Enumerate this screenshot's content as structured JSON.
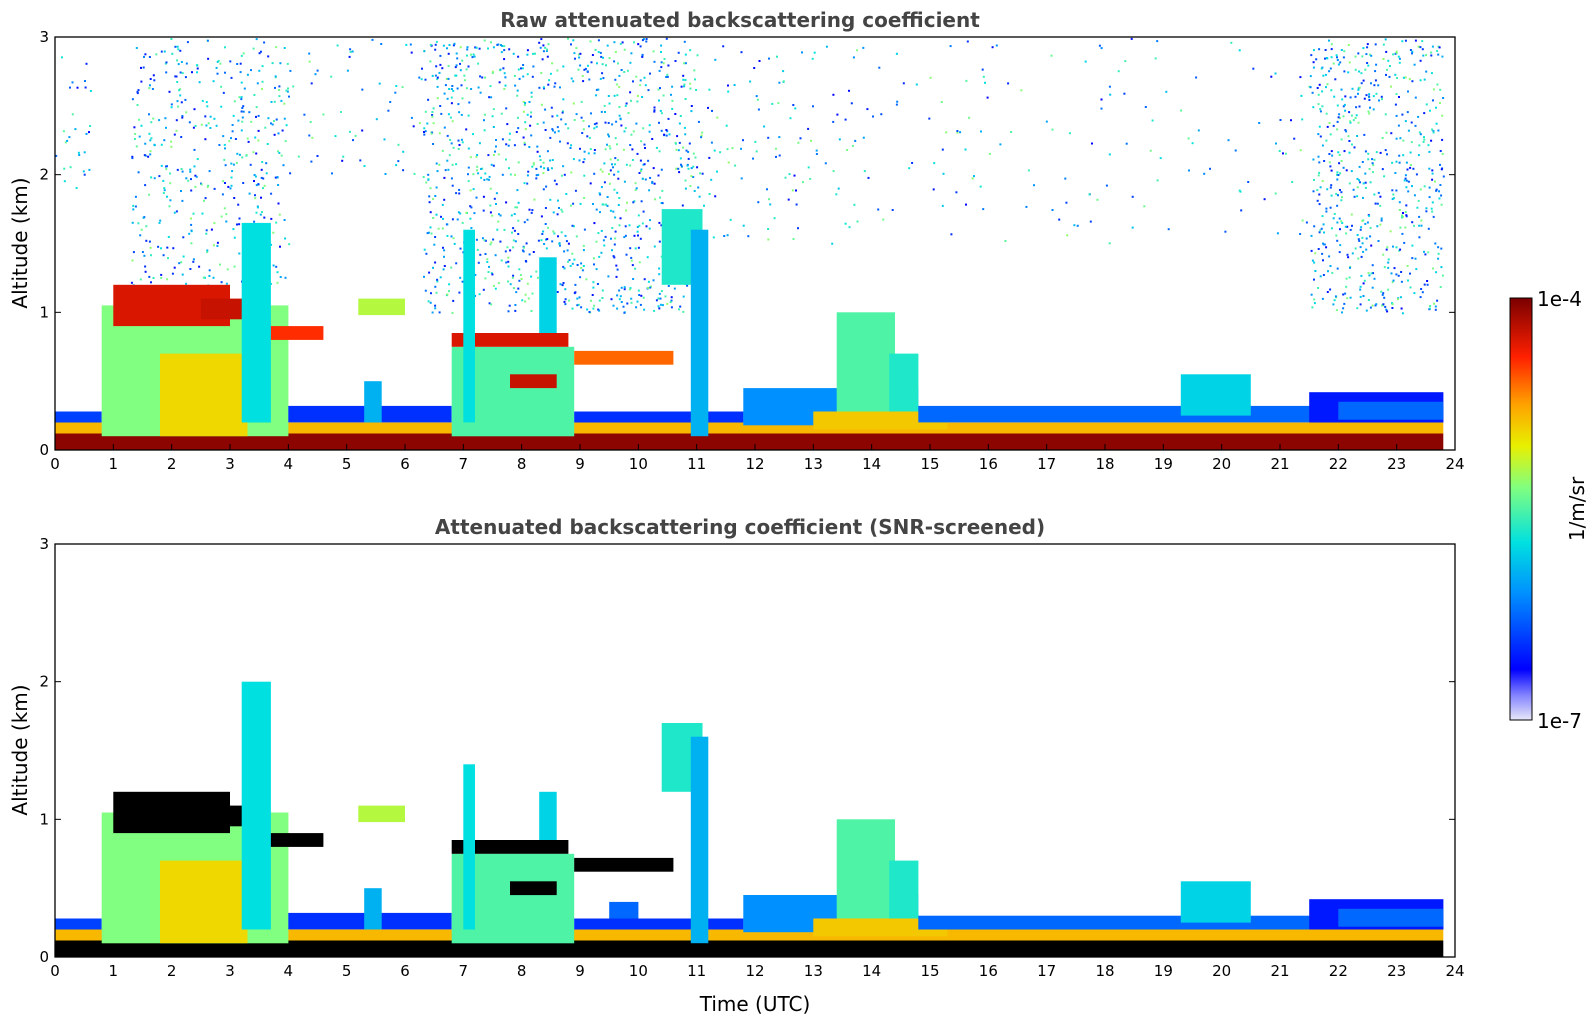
{
  "chart_data": [
    {
      "type": "heatmap",
      "title": "Raw attenuated backscattering coefficient",
      "xlabel": "",
      "ylabel": "Altitude (km)",
      "xlim": [
        0,
        24
      ],
      "ylim": [
        0,
        3
      ],
      "x_ticks": [
        "0",
        "1",
        "2",
        "3",
        "4",
        "5",
        "6",
        "7",
        "8",
        "9",
        "10",
        "11",
        "12",
        "13",
        "14",
        "15",
        "16",
        "17",
        "18",
        "19",
        "20",
        "21",
        "22",
        "23",
        "24"
      ],
      "y_ticks": [
        "0",
        "1",
        "2",
        "3"
      ],
      "masked_black": false,
      "noise": [
        {
          "t0": 0.0,
          "t1": 0.6,
          "alt0": 1.8,
          "alt1": 3.0,
          "density": 0.15
        },
        {
          "t0": 1.3,
          "t1": 4.0,
          "alt0": 1.2,
          "alt1": 3.0,
          "density": 0.35
        },
        {
          "t0": 4.0,
          "t1": 6.8,
          "alt0": 2.0,
          "alt1": 3.0,
          "density": 0.1
        },
        {
          "t0": 6.3,
          "t1": 11.0,
          "alt0": 1.0,
          "alt1": 3.0,
          "density": 0.45
        },
        {
          "t0": 11.0,
          "t1": 13.0,
          "alt0": 1.5,
          "alt1": 3.0,
          "density": 0.12
        },
        {
          "t0": 13.0,
          "t1": 21.5,
          "alt0": 1.5,
          "alt1": 3.0,
          "density": 0.05
        },
        {
          "t0": 21.5,
          "t1": 23.8,
          "alt0": 1.0,
          "alt1": 3.0,
          "density": 0.5
        }
      ],
      "features": [
        {
          "t0": 0.0,
          "t1": 23.8,
          "alt0": 0.0,
          "alt1": 0.12,
          "level": 0.98
        },
        {
          "t0": 0.0,
          "t1": 23.8,
          "alt0": 0.12,
          "alt1": 0.2,
          "level": 0.72
        },
        {
          "t0": 0.0,
          "t1": 0.8,
          "alt0": 0.2,
          "alt1": 0.28,
          "level": 0.2
        },
        {
          "t0": 0.8,
          "t1": 4.0,
          "alt0": 0.1,
          "alt1": 1.05,
          "level": 0.55
        },
        {
          "t0": 1.8,
          "t1": 3.3,
          "alt0": 0.1,
          "alt1": 0.7,
          "level": 0.68
        },
        {
          "t0": 1.0,
          "t1": 3.0,
          "alt0": 0.9,
          "alt1": 1.2,
          "level": 0.9
        },
        {
          "t0": 2.5,
          "t1": 3.6,
          "alt0": 0.95,
          "alt1": 1.1,
          "level": 0.92
        },
        {
          "t0": 3.5,
          "t1": 4.6,
          "alt0": 0.8,
          "alt1": 0.9,
          "level": 0.85
        },
        {
          "t0": 3.2,
          "t1": 3.7,
          "alt0": 0.2,
          "alt1": 1.65,
          "level": 0.42
        },
        {
          "t0": 4.0,
          "t1": 6.8,
          "alt0": 0.2,
          "alt1": 0.32,
          "level": 0.18
        },
        {
          "t0": 5.3,
          "t1": 5.6,
          "alt0": 0.2,
          "alt1": 0.5,
          "level": 0.35
        },
        {
          "t0": 5.2,
          "t1": 6.0,
          "alt0": 0.98,
          "alt1": 1.1,
          "level": 0.6
        },
        {
          "t0": 6.8,
          "t1": 8.9,
          "alt0": 0.1,
          "alt1": 0.75,
          "level": 0.5
        },
        {
          "t0": 6.8,
          "t1": 8.8,
          "alt0": 0.75,
          "alt1": 0.85,
          "level": 0.9
        },
        {
          "t0": 7.8,
          "t1": 8.6,
          "alt0": 0.45,
          "alt1": 0.55,
          "level": 0.92
        },
        {
          "t0": 7.0,
          "t1": 7.2,
          "alt0": 0.2,
          "alt1": 1.6,
          "level": 0.42
        },
        {
          "t0": 8.3,
          "t1": 8.6,
          "alt0": 0.85,
          "alt1": 1.4,
          "level": 0.4
        },
        {
          "t0": 8.9,
          "t1": 10.6,
          "alt0": 0.62,
          "alt1": 0.72,
          "level": 0.8
        },
        {
          "t0": 8.9,
          "t1": 11.8,
          "alt0": 0.2,
          "alt1": 0.28,
          "level": 0.18
        },
        {
          "t0": 10.4,
          "t1": 11.1,
          "alt0": 1.2,
          "alt1": 1.75,
          "level": 0.45
        },
        {
          "t0": 10.9,
          "t1": 11.2,
          "alt0": 0.1,
          "alt1": 1.6,
          "level": 0.35
        },
        {
          "t0": 11.8,
          "t1": 14.8,
          "alt0": 0.18,
          "alt1": 0.45,
          "level": 0.3
        },
        {
          "t0": 13.4,
          "t1": 14.4,
          "alt0": 0.2,
          "alt1": 1.0,
          "level": 0.5
        },
        {
          "t0": 14.3,
          "t1": 14.8,
          "alt0": 0.2,
          "alt1": 0.7,
          "level": 0.45
        },
        {
          "t0": 13.0,
          "t1": 15.3,
          "alt0": 0.15,
          "alt1": 0.28,
          "level": 0.7
        },
        {
          "t0": 14.8,
          "t1": 23.8,
          "alt0": 0.2,
          "alt1": 0.32,
          "level": 0.25
        },
        {
          "t0": 19.3,
          "t1": 20.5,
          "alt0": 0.25,
          "alt1": 0.55,
          "level": 0.4
        },
        {
          "t0": 21.5,
          "t1": 23.8,
          "alt0": 0.2,
          "alt1": 0.42,
          "level": 0.15
        },
        {
          "t0": 22.0,
          "t1": 23.8,
          "alt0": 0.22,
          "alt1": 0.35,
          "level": 0.25
        }
      ]
    },
    {
      "type": "heatmap",
      "title": "Attenuated backscattering coefficient (SNR-screened)",
      "xlabel": "Time (UTC)",
      "ylabel": "Altitude (km)",
      "xlim": [
        0,
        24
      ],
      "ylim": [
        0,
        3
      ],
      "x_ticks": [
        "0",
        "1",
        "2",
        "3",
        "4",
        "5",
        "6",
        "7",
        "8",
        "9",
        "10",
        "11",
        "12",
        "13",
        "14",
        "15",
        "16",
        "17",
        "18",
        "19",
        "20",
        "21",
        "22",
        "23",
        "24"
      ],
      "y_ticks": [
        "0",
        "1",
        "2",
        "3"
      ],
      "masked_black": true,
      "noise": [],
      "features": [
        {
          "t0": 0.0,
          "t1": 23.8,
          "alt0": 0.0,
          "alt1": 0.12,
          "level": 1.1
        },
        {
          "t0": 0.0,
          "t1": 23.8,
          "alt0": 0.12,
          "alt1": 0.2,
          "level": 0.72
        },
        {
          "t0": 0.0,
          "t1": 0.8,
          "alt0": 0.2,
          "alt1": 0.28,
          "level": 0.2
        },
        {
          "t0": 0.8,
          "t1": 4.0,
          "alt0": 0.1,
          "alt1": 1.05,
          "level": 0.55
        },
        {
          "t0": 1.8,
          "t1": 3.3,
          "alt0": 0.1,
          "alt1": 0.7,
          "level": 0.68
        },
        {
          "t0": 1.0,
          "t1": 3.0,
          "alt0": 0.9,
          "alt1": 1.2,
          "level": 1.1
        },
        {
          "t0": 2.5,
          "t1": 3.6,
          "alt0": 0.95,
          "alt1": 1.1,
          "level": 1.1
        },
        {
          "t0": 3.5,
          "t1": 4.6,
          "alt0": 0.8,
          "alt1": 0.9,
          "level": 1.1
        },
        {
          "t0": 3.2,
          "t1": 3.7,
          "alt0": 0.2,
          "alt1": 2.0,
          "level": 0.42
        },
        {
          "t0": 4.0,
          "t1": 6.8,
          "alt0": 0.2,
          "alt1": 0.32,
          "level": 0.18
        },
        {
          "t0": 5.3,
          "t1": 5.6,
          "alt0": 0.2,
          "alt1": 0.5,
          "level": 0.35
        },
        {
          "t0": 5.2,
          "t1": 6.0,
          "alt0": 0.98,
          "alt1": 1.1,
          "level": 0.6
        },
        {
          "t0": 6.8,
          "t1": 8.9,
          "alt0": 0.1,
          "alt1": 0.75,
          "level": 0.5
        },
        {
          "t0": 6.8,
          "t1": 8.8,
          "alt0": 0.75,
          "alt1": 0.85,
          "level": 1.1
        },
        {
          "t0": 7.8,
          "t1": 8.6,
          "alt0": 0.45,
          "alt1": 0.55,
          "level": 1.1
        },
        {
          "t0": 7.0,
          "t1": 7.2,
          "alt0": 0.2,
          "alt1": 1.4,
          "level": 0.42
        },
        {
          "t0": 8.3,
          "t1": 8.6,
          "alt0": 0.85,
          "alt1": 1.2,
          "level": 0.4
        },
        {
          "t0": 8.9,
          "t1": 10.6,
          "alt0": 0.62,
          "alt1": 0.72,
          "level": 1.1
        },
        {
          "t0": 9.5,
          "t1": 10.0,
          "alt0": 0.2,
          "alt1": 0.4,
          "level": 0.25
        },
        {
          "t0": 8.9,
          "t1": 11.8,
          "alt0": 0.2,
          "alt1": 0.28,
          "level": 0.18
        },
        {
          "t0": 10.4,
          "t1": 11.1,
          "alt0": 1.2,
          "alt1": 1.7,
          "level": 0.45
        },
        {
          "t0": 10.9,
          "t1": 11.2,
          "alt0": 0.1,
          "alt1": 1.6,
          "level": 0.35
        },
        {
          "t0": 11.8,
          "t1": 14.8,
          "alt0": 0.18,
          "alt1": 0.45,
          "level": 0.3
        },
        {
          "t0": 13.4,
          "t1": 14.4,
          "alt0": 0.2,
          "alt1": 1.0,
          "level": 0.5
        },
        {
          "t0": 14.3,
          "t1": 14.8,
          "alt0": 0.2,
          "alt1": 0.7,
          "level": 0.45
        },
        {
          "t0": 13.0,
          "t1": 15.3,
          "alt0": 0.15,
          "alt1": 0.28,
          "level": 0.7
        },
        {
          "t0": 14.8,
          "t1": 23.8,
          "alt0": 0.2,
          "alt1": 0.3,
          "level": 0.25
        },
        {
          "t0": 19.3,
          "t1": 20.5,
          "alt0": 0.25,
          "alt1": 0.55,
          "level": 0.4
        },
        {
          "t0": 21.5,
          "t1": 23.8,
          "alt0": 0.2,
          "alt1": 0.42,
          "level": 0.15
        },
        {
          "t0": 22.0,
          "t1": 23.8,
          "alt0": 0.22,
          "alt1": 0.35,
          "level": 0.25
        }
      ]
    }
  ],
  "colorbar": {
    "label": "1/m/sr",
    "max_label": "1e-4",
    "min_label": "1e-7",
    "colormap": "jet",
    "scale": "log"
  },
  "colors": {
    "masked": "#000000",
    "title": "#444444"
  }
}
